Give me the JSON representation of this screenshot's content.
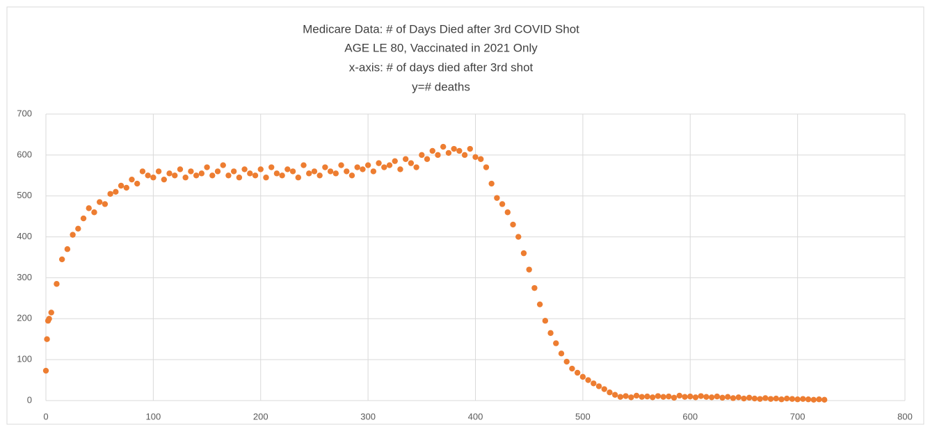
{
  "chart_data": {
    "type": "scatter",
    "title": "Medicare Data: # of Days Died after 3rd COVID Shot",
    "subtitles": [
      "AGE LE 80, Vaccinated in 2021 Only",
      "x-axis: # of days died after 3rd shot",
      "y=# deaths"
    ],
    "color": "#ED7D31",
    "grid": true,
    "xlim": [
      0,
      800
    ],
    "xticks": [
      0,
      100,
      200,
      300,
      400,
      500,
      600,
      700,
      800
    ],
    "ylim": [
      0,
      700
    ],
    "yticks": [
      0,
      100,
      200,
      300,
      400,
      500,
      600,
      700
    ],
    "x": [
      0,
      1,
      2,
      3,
      5,
      10,
      15,
      20,
      25,
      30,
      35,
      40,
      45,
      50,
      55,
      60,
      65,
      70,
      75,
      80,
      85,
      90,
      95,
      100,
      105,
      110,
      115,
      120,
      125,
      130,
      135,
      140,
      145,
      150,
      155,
      160,
      165,
      170,
      175,
      180,
      185,
      190,
      195,
      200,
      205,
      210,
      215,
      220,
      225,
      230,
      235,
      240,
      245,
      250,
      255,
      260,
      265,
      270,
      275,
      280,
      285,
      290,
      295,
      300,
      305,
      310,
      315,
      320,
      325,
      330,
      335,
      340,
      345,
      350,
      355,
      360,
      365,
      370,
      375,
      380,
      385,
      390,
      395,
      400,
      405,
      410,
      415,
      420,
      425,
      430,
      435,
      440,
      445,
      450,
      455,
      460,
      465,
      470,
      475,
      480,
      485,
      490,
      495,
      500,
      505,
      510,
      515,
      520,
      525,
      530,
      535,
      540,
      545,
      550,
      555,
      560,
      565,
      570,
      575,
      580,
      585,
      590,
      595,
      600,
      605,
      610,
      615,
      620,
      625,
      630,
      635,
      640,
      645,
      650,
      655,
      660,
      665,
      670,
      675,
      680,
      685,
      690,
      695,
      700,
      705,
      710,
      715,
      720,
      725
    ],
    "values": [
      73,
      150,
      195,
      200,
      215,
      285,
      345,
      370,
      405,
      420,
      445,
      470,
      460,
      485,
      480,
      505,
      510,
      525,
      520,
      540,
      530,
      560,
      550,
      545,
      560,
      540,
      555,
      550,
      565,
      545,
      560,
      550,
      555,
      570,
      550,
      560,
      575,
      550,
      560,
      545,
      565,
      555,
      550,
      565,
      545,
      570,
      555,
      550,
      565,
      560,
      545,
      575,
      555,
      560,
      550,
      570,
      560,
      555,
      575,
      560,
      550,
      570,
      565,
      575,
      560,
      580,
      570,
      575,
      585,
      565,
      590,
      580,
      570,
      600,
      590,
      610,
      600,
      620,
      605,
      615,
      610,
      600,
      615,
      595,
      590,
      570,
      530,
      495,
      480,
      460,
      430,
      400,
      360,
      320,
      275,
      235,
      195,
      165,
      140,
      115,
      95,
      78,
      68,
      58,
      50,
      42,
      35,
      28,
      20,
      14,
      9,
      11,
      8,
      12,
      9,
      10,
      8,
      11,
      9,
      10,
      7,
      12,
      9,
      10,
      8,
      11,
      9,
      8,
      10,
      7,
      9,
      6,
      8,
      5,
      7,
      5,
      4,
      6,
      4,
      5,
      3,
      5,
      4,
      3,
      4,
      3,
      2,
      3,
      2
    ]
  }
}
